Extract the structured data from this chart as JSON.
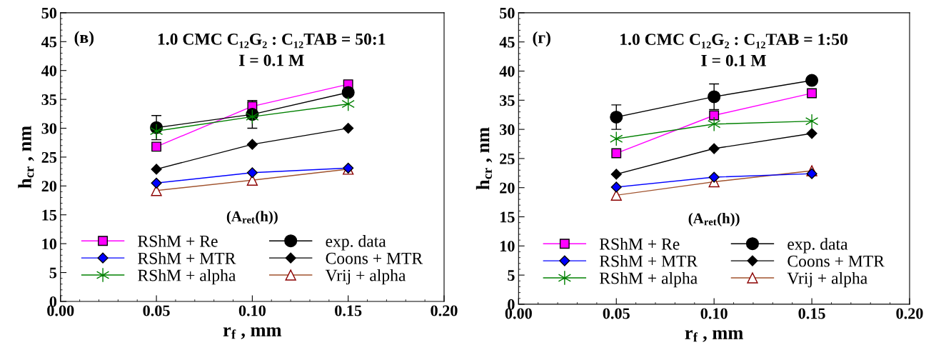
{
  "chart_data": [
    {
      "type": "line",
      "title": "1.0 CMC C₁₂G₂ : C₁₂TAB = 50:1\nI = 0.1 M",
      "xlabel": "r$_{f}$ , mm",
      "ylabel": "h$_{cr}$ , nm",
      "annotations": [
        "(в)",
        "(A$_{ret}$(h))"
      ],
      "x": [
        0.05,
        0.1,
        0.15
      ],
      "xlim": [
        0,
        0.2
      ],
      "xticks": [
        {
          "value": 0,
          "label": "0.00"
        },
        {
          "value": 0.05,
          "label": "0.05"
        },
        {
          "value": 0.1,
          "label": "0.10"
        },
        {
          "value": 0.15,
          "label": "0.15"
        },
        {
          "value": 0.2,
          "label": "0.20"
        }
      ],
      "ylim": [
        0,
        50
      ],
      "yticks": [
        0,
        5,
        10,
        15,
        20,
        25,
        30,
        35,
        40,
        45,
        50
      ],
      "grid": false,
      "legend": "bottom",
      "series": [
        {
          "name": "RShM + Re",
          "color": "#ff00ff",
          "marker": "square",
          "values": [
            26.8,
            33.8,
            37.6
          ]
        },
        {
          "name": "exp. data",
          "color": "#000000",
          "marker": "circle",
          "values": [
            30.1,
            32.4,
            36.2
          ],
          "errors": [
            2.1,
            2.4,
            null
          ]
        },
        {
          "name": "RShM + MTR",
          "color": "#0000ff",
          "marker": "diamond",
          "values": [
            20.5,
            22.3,
            23.1
          ]
        },
        {
          "name": "Coons + MTR",
          "color": "#000000",
          "marker": "diamond",
          "values": [
            22.9,
            27.2,
            30.0
          ]
        },
        {
          "name": "RShM + alpha",
          "color": "#008000",
          "marker": "cross",
          "values": [
            29.5,
            32.0,
            34.2
          ]
        },
        {
          "name": "Vrij + alpha",
          "color": "#a0522d",
          "marker": "triangle",
          "values": [
            19.2,
            21.0,
            22.9
          ]
        }
      ]
    },
    {
      "type": "line",
      "title": "1.0 CMC C₁₂G₂ : C₁₂TAB = 1:50\nI = 0.1 M",
      "xlabel": "r$_{f}$ , mm",
      "ylabel": "h$_{cr}$ , nm",
      "annotations": [
        "(г)",
        "(A$_{ret}$(h))"
      ],
      "x": [
        0.05,
        0.1,
        0.15
      ],
      "xlim": [
        0,
        0.2
      ],
      "xticks": [
        {
          "value": 0,
          "label": "0.00"
        },
        {
          "value": 0.05,
          "label": "0.05"
        },
        {
          "value": 0.1,
          "label": "0.10"
        },
        {
          "value": 0.15,
          "label": "0.15"
        },
        {
          "value": 0.2,
          "label": "0.20"
        }
      ],
      "ylim": [
        0,
        50
      ],
      "yticks": [
        0,
        5,
        10,
        15,
        20,
        25,
        30,
        35,
        40,
        45,
        50
      ],
      "grid": false,
      "legend": "bottom",
      "series": [
        {
          "name": "RShM + Re",
          "color": "#ff00ff",
          "marker": "square",
          "values": [
            25.9,
            32.4,
            36.2
          ]
        },
        {
          "name": "exp. data",
          "color": "#000000",
          "marker": "circle",
          "values": [
            32.1,
            35.6,
            38.4
          ],
          "errors": [
            2.1,
            2.2,
            null
          ]
        },
        {
          "name": "RShM + MTR",
          "color": "#0000ff",
          "marker": "diamond",
          "values": [
            20.1,
            21.8,
            22.4
          ]
        },
        {
          "name": "Coons + MTR",
          "color": "#000000",
          "marker": "diamond",
          "values": [
            22.3,
            26.7,
            29.3
          ]
        },
        {
          "name": "RShM + alpha",
          "color": "#008000",
          "marker": "cross",
          "values": [
            28.4,
            30.9,
            31.4
          ]
        },
        {
          "name": "Vrij + alpha",
          "color": "#a0522d",
          "marker": "triangle",
          "values": [
            18.7,
            21.0,
            22.9
          ]
        }
      ]
    }
  ]
}
